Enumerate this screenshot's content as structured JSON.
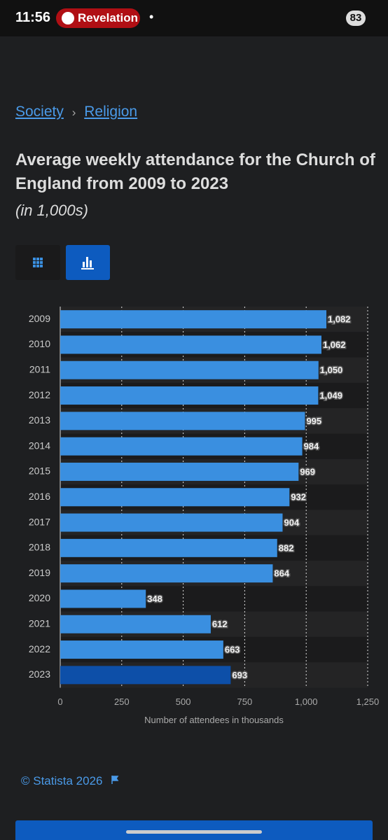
{
  "status_bar": {
    "time": "11:56",
    "app": "Revelation",
    "dot": "•",
    "battery": "83"
  },
  "breadcrumb": {
    "first": "Society",
    "separator": "›",
    "second": "Religion"
  },
  "header": {
    "title": "Average weekly attendance for the Church of England from 2009 to 2023",
    "subtitle": "(in 1,000s)"
  },
  "chart_data": {
    "type": "hbar",
    "categories": [
      "2009",
      "2010",
      "2011",
      "2012",
      "2013",
      "2014",
      "2015",
      "2016",
      "2017",
      "2018",
      "2019",
      "2020",
      "2021",
      "2022",
      "2023"
    ],
    "values": [
      1082,
      1062,
      1050,
      1049,
      995,
      984,
      969,
      932,
      904,
      882,
      864,
      348,
      612,
      663,
      693
    ],
    "value_labels": [
      "1,082",
      "1,062",
      "1,050",
      "1,049",
      "995",
      "984",
      "969",
      "932",
      "904",
      "882",
      "864",
      "348",
      "612",
      "663",
      "693"
    ],
    "colors": [
      "#3a8fe0",
      "#3a8fe0",
      "#3a8fe0",
      "#3a8fe0",
      "#3a8fe0",
      "#3a8fe0",
      "#3a8fe0",
      "#3a8fe0",
      "#3a8fe0",
      "#3a8fe0",
      "#3a8fe0",
      "#3a8fe0",
      "#3a8fe0",
      "#3a8fe0",
      "#0d4fa8"
    ],
    "xlim": [
      0,
      1250
    ],
    "xticks": [
      0,
      250,
      500,
      750,
      {
        "value": 1000,
        "label": "1,000"
      },
      {
        "value": 1250,
        "label": "1,250"
      }
    ],
    "x_label": "Number of attendees in thousands",
    "grid": true
  },
  "footer": {
    "source": "© Statista 2026"
  }
}
